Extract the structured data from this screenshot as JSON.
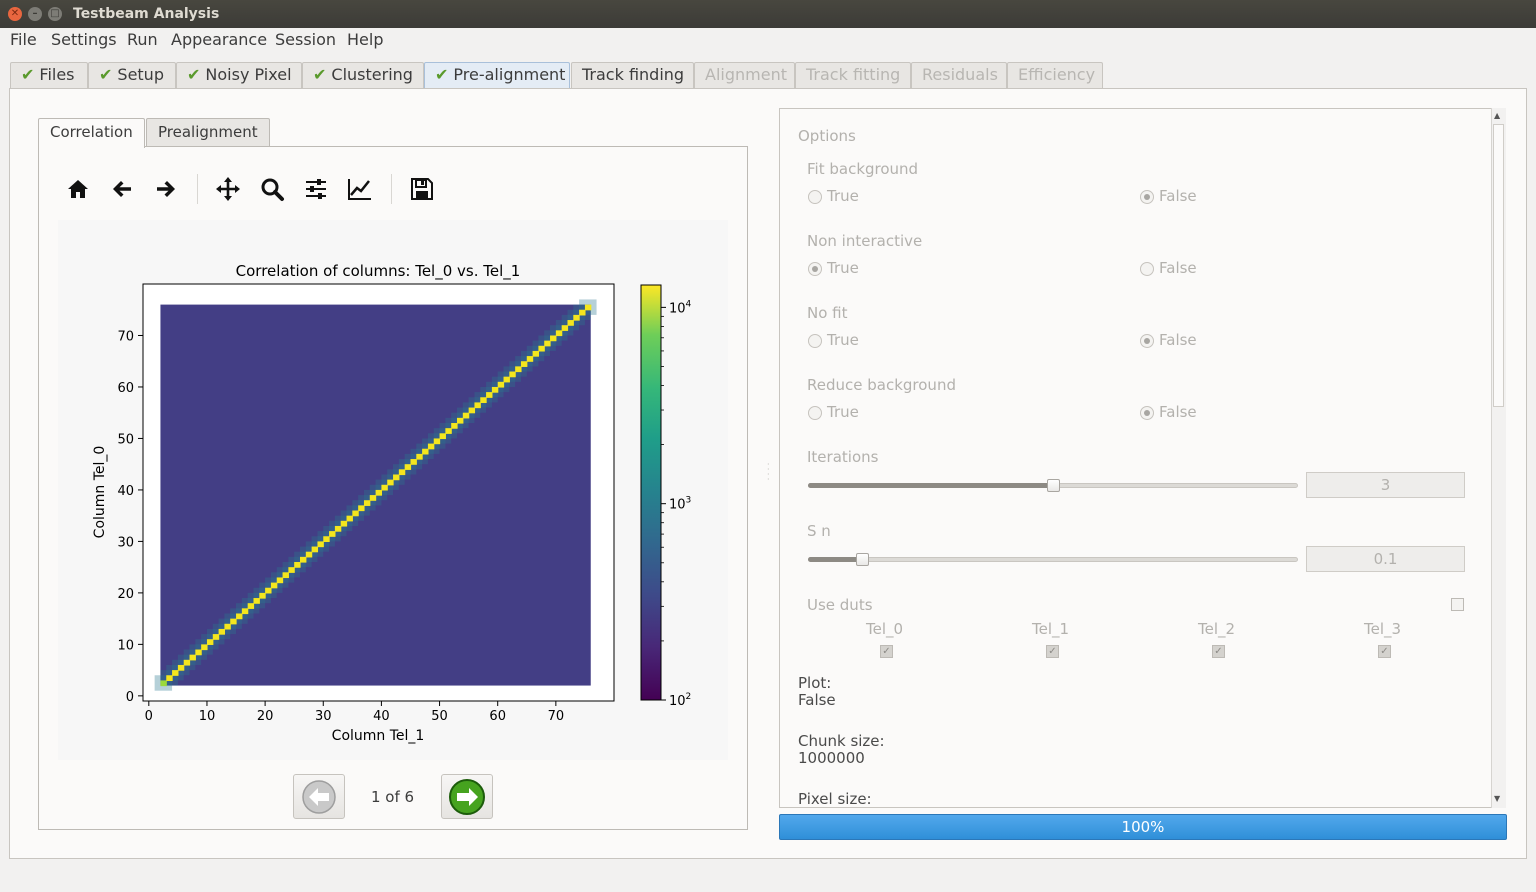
{
  "window": {
    "title": "Testbeam Analysis"
  },
  "menu": [
    "File",
    "Settings",
    "Run",
    "Appearance",
    "Session",
    "Help"
  ],
  "tabs": [
    {
      "label": "Files",
      "done": true,
      "state": "normal"
    },
    {
      "label": "Setup",
      "done": true,
      "state": "normal"
    },
    {
      "label": "Noisy Pixel",
      "done": true,
      "state": "normal"
    },
    {
      "label": "Clustering",
      "done": true,
      "state": "normal"
    },
    {
      "label": "Pre-alignment",
      "done": true,
      "state": "active"
    },
    {
      "label": "Track finding",
      "done": false,
      "state": "normal"
    },
    {
      "label": "Alignment",
      "done": false,
      "state": "disabled"
    },
    {
      "label": "Track fitting",
      "done": false,
      "state": "disabled"
    },
    {
      "label": "Residuals",
      "done": false,
      "state": "disabled"
    },
    {
      "label": "Efficiency",
      "done": false,
      "state": "disabled"
    }
  ],
  "subtabs": [
    "Correlation",
    "Prealignment"
  ],
  "toolbar_icons": [
    "home-icon",
    "back-arrow-icon",
    "forward-arrow-icon",
    "pan-icon",
    "zoom-icon",
    "subplots-config-icon",
    "edit-axes-icon",
    "save-icon"
  ],
  "chart_data": {
    "type": "heatmap",
    "title": "Correlation of columns: Tel_0 vs. Tel_1",
    "xlabel": "Column Tel_1",
    "ylabel": "Column Tel_0",
    "xlim": [
      -1,
      80
    ],
    "ylim": [
      -1,
      80
    ],
    "x_ticks": [
      0,
      10,
      20,
      30,
      40,
      50,
      60,
      70
    ],
    "y_ticks": [
      0,
      10,
      20,
      30,
      40,
      50,
      60,
      70
    ],
    "data_extent": [
      2,
      76,
      2,
      76
    ],
    "diagonal": {
      "x": [
        2,
        76
      ],
      "y": [
        2,
        76
      ],
      "value": 12000
    },
    "background_value": 150,
    "colormap": "viridis",
    "color_scale": "log",
    "colorbar": {
      "min": 100,
      "max": 13000,
      "ticks": [
        "10",
        "10",
        "10"
      ],
      "tick_exps": [
        "4",
        "3",
        "2"
      ],
      "tick_values": [
        10000,
        1000,
        100
      ]
    },
    "grid": false
  },
  "pager": {
    "label": "1 of 6"
  },
  "options": {
    "header": "Options",
    "radio_groups": [
      {
        "label": "Fit background",
        "options": [
          "True",
          "False"
        ],
        "selected": "False"
      },
      {
        "label": "Non interactive",
        "options": [
          "True",
          "False"
        ],
        "selected": "True"
      },
      {
        "label": "No fit",
        "options": [
          "True",
          "False"
        ],
        "selected": "False"
      },
      {
        "label": "Reduce background",
        "options": [
          "True",
          "False"
        ],
        "selected": "False"
      }
    ],
    "iterations": {
      "label": "Iterations",
      "value": "3",
      "level": 0.5
    },
    "s_n": {
      "label": "S n",
      "value": "0.1",
      "level": 0.11
    },
    "use_duts": {
      "label": "Use duts",
      "duts": [
        "Tel_0",
        "Tel_1",
        "Tel_2",
        "Tel_3"
      ]
    },
    "plot": {
      "label": "Plot:",
      "value": "False"
    },
    "chunk_size": {
      "label": "Chunk size:",
      "value": "1000000"
    },
    "pixel_size": {
      "label": "Pixel size:"
    }
  },
  "progress": {
    "label": "100%",
    "value": 1.0
  },
  "colors": {
    "accent": "#3597e2",
    "check": "#5a9a2c",
    "diag": "#f4e61e",
    "bg_cell": "#433e85"
  }
}
